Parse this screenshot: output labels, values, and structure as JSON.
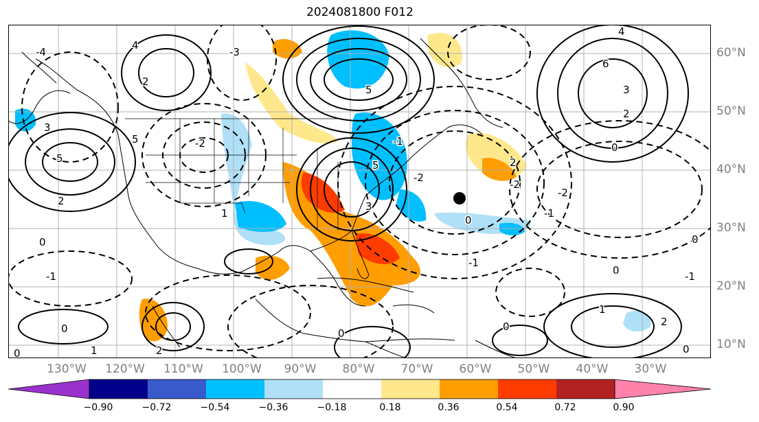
{
  "title": "2024081800 F012",
  "latitude_labels": [
    "60°N",
    "50°N",
    "40°N",
    "30°N",
    "20°N",
    "10°N"
  ],
  "longitude_labels": [
    "130°W",
    "120°W",
    "110°W",
    "100°W",
    "90°W",
    "80°W",
    "70°W",
    "60°W",
    "50°W",
    "40°W",
    "30°W"
  ],
  "contour_labels": [
    "-3",
    "-4",
    "-2",
    "-1",
    "0",
    "1",
    "2",
    "3",
    "4",
    "5",
    "6"
  ],
  "colorbar": {
    "ticks": [
      "−0.90",
      "−0.72",
      "−0.54",
      "−0.36",
      "−0.18",
      "0.18",
      "0.36",
      "0.54",
      "0.72",
      "0.90"
    ],
    "colors": [
      "#9932cc",
      "#00008b",
      "#3a5bcc",
      "#00bfff",
      "#b0e0f8",
      "#ffffff",
      "#ffe88c",
      "#ff9e00",
      "#ff3c00",
      "#b22222",
      "#ff82ab"
    ]
  },
  "colors": {
    "land_outline": "#000000",
    "grid": "#b0b0b0",
    "axis_label": "#808080"
  },
  "marker": "filled black circle near 35°N 64°W"
}
